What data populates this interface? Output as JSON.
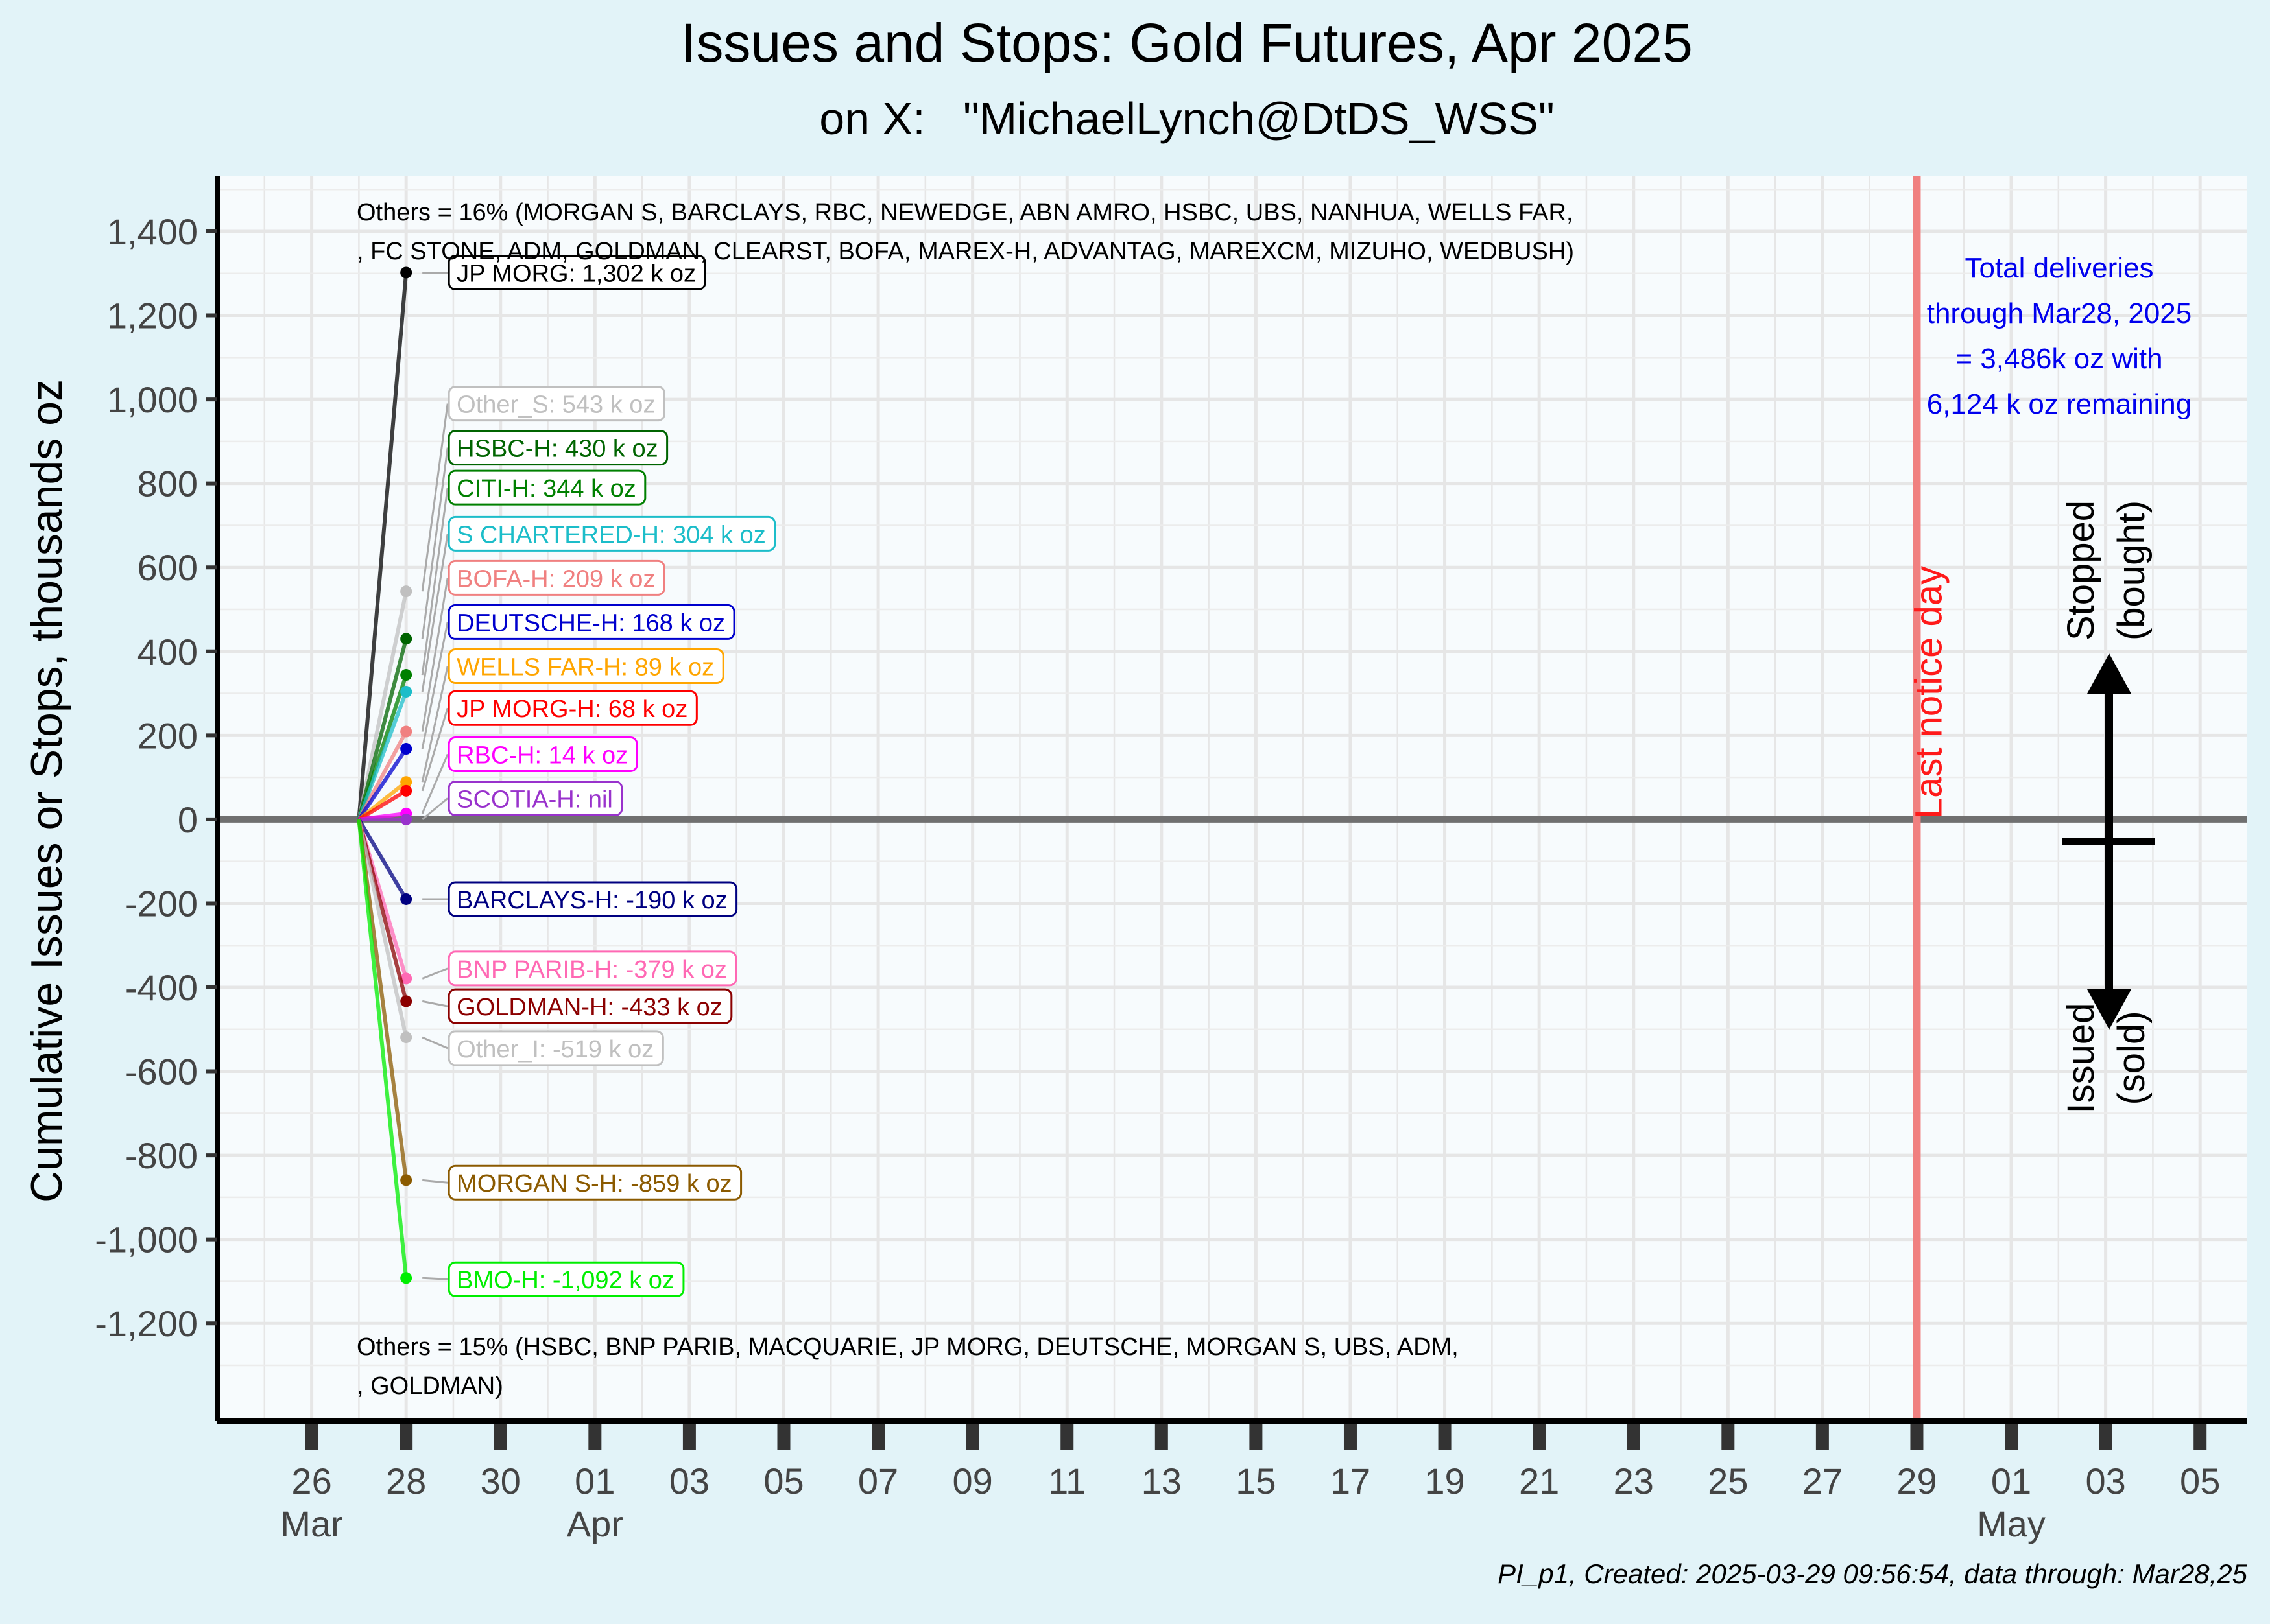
{
  "chart_data": {
    "type": "line",
    "title": "Issues and Stops: Gold Futures, Apr 2025",
    "subtitle": "on X:   \"MichaelLynch@DtDS_WSS\"",
    "ylabel": "Cumulative Issues or Stops, thousands oz",
    "xlabel": "",
    "ylim": [
      -1300,
      1400
    ],
    "xlim": [
      "2025-03-24",
      "2025-05-06"
    ],
    "y_ticks": [
      {
        "value": 1400,
        "label": "1,400"
      },
      {
        "value": 1200,
        "label": "1,200"
      },
      {
        "value": 1000,
        "label": "1,000"
      },
      {
        "value": 800,
        "label": "800"
      },
      {
        "value": 600,
        "label": "600"
      },
      {
        "value": 400,
        "label": "400"
      },
      {
        "value": 200,
        "label": "200"
      },
      {
        "value": 0,
        "label": "0"
      },
      {
        "value": -200,
        "label": "-200"
      },
      {
        "value": -400,
        "label": "-400"
      },
      {
        "value": -600,
        "label": "-600"
      },
      {
        "value": -800,
        "label": "-800"
      },
      {
        "value": -1000,
        "label": "-1,000"
      },
      {
        "value": -1200,
        "label": "-1,200"
      }
    ],
    "x_ticks": [
      {
        "date": "2025-03-26",
        "label": "26",
        "sub": "Mar"
      },
      {
        "date": "2025-03-28",
        "label": "28",
        "sub": ""
      },
      {
        "date": "2025-03-30",
        "label": "30",
        "sub": ""
      },
      {
        "date": "2025-04-01",
        "label": "01",
        "sub": "Apr"
      },
      {
        "date": "2025-04-03",
        "label": "03",
        "sub": ""
      },
      {
        "date": "2025-04-05",
        "label": "05",
        "sub": ""
      },
      {
        "date": "2025-04-07",
        "label": "07",
        "sub": ""
      },
      {
        "date": "2025-04-09",
        "label": "09",
        "sub": ""
      },
      {
        "date": "2025-04-11",
        "label": "11",
        "sub": ""
      },
      {
        "date": "2025-04-13",
        "label": "13",
        "sub": ""
      },
      {
        "date": "2025-04-15",
        "label": "15",
        "sub": ""
      },
      {
        "date": "2025-04-17",
        "label": "17",
        "sub": ""
      },
      {
        "date": "2025-04-19",
        "label": "19",
        "sub": ""
      },
      {
        "date": "2025-04-21",
        "label": "21",
        "sub": ""
      },
      {
        "date": "2025-04-23",
        "label": "23",
        "sub": ""
      },
      {
        "date": "2025-04-25",
        "label": "25",
        "sub": ""
      },
      {
        "date": "2025-04-27",
        "label": "27",
        "sub": ""
      },
      {
        "date": "2025-04-29",
        "label": "29",
        "sub": ""
      },
      {
        "date": "2025-05-01",
        "label": "01",
        "sub": "May"
      },
      {
        "date": "2025-05-03",
        "label": "03",
        "sub": ""
      },
      {
        "date": "2025-05-05",
        "label": "05",
        "sub": ""
      }
    ],
    "series": [
      {
        "label": "JP MORG: 1,302 k oz",
        "color": "#000000",
        "x": [
          "2025-03-27",
          "2025-03-28"
        ],
        "y": [
          0,
          1302
        ],
        "label_y": 1302
      },
      {
        "label": "Other_S: 543 k oz",
        "color": "#c0c0c0",
        "x": [
          "2025-03-27",
          "2025-03-28"
        ],
        "y": [
          0,
          543
        ],
        "label_y": 990
      },
      {
        "label": "HSBC-H: 430 k oz",
        "color": "#006400",
        "x": [
          "2025-03-27",
          "2025-03-28"
        ],
        "y": [
          0,
          430
        ],
        "label_y": 885
      },
      {
        "label": "CITI-H: 344 k oz",
        "color": "#008000",
        "x": [
          "2025-03-27",
          "2025-03-28"
        ],
        "y": [
          0,
          344
        ],
        "label_y": 790
      },
      {
        "label": "S CHARTERED-H: 304 k oz",
        "color": "#1cbdc9",
        "x": [
          "2025-03-27",
          "2025-03-28"
        ],
        "y": [
          0,
          304
        ],
        "label_y": 680
      },
      {
        "label": "BOFA-H: 209 k oz",
        "color": "#f08080",
        "x": [
          "2025-03-27",
          "2025-03-28"
        ],
        "y": [
          0,
          209
        ],
        "label_y": 575
      },
      {
        "label": "DEUTSCHE-H: 168 k oz",
        "color": "#0000cd",
        "x": [
          "2025-03-27",
          "2025-03-28"
        ],
        "y": [
          0,
          168
        ],
        "label_y": 470
      },
      {
        "label": "WELLS FAR-H: 89 k oz",
        "color": "#ffa500",
        "x": [
          "2025-03-27",
          "2025-03-28"
        ],
        "y": [
          0,
          89
        ],
        "label_y": 365
      },
      {
        "label": "JP MORG-H: 68 k oz",
        "color": "#ff0000",
        "x": [
          "2025-03-27",
          "2025-03-28"
        ],
        "y": [
          0,
          68
        ],
        "label_y": 265
      },
      {
        "label": "RBC-H: 14 k oz",
        "color": "#ff00ff",
        "x": [
          "2025-03-27",
          "2025-03-28"
        ],
        "y": [
          0,
          14
        ],
        "label_y": 155
      },
      {
        "label": "SCOTIA-H: nil",
        "color": "#9932cc",
        "x": [
          "2025-03-27",
          "2025-03-28"
        ],
        "y": [
          0,
          0
        ],
        "label_y": 50
      },
      {
        "label": "BARCLAYS-H: -190 k oz",
        "color": "#000080",
        "x": [
          "2025-03-27",
          "2025-03-28"
        ],
        "y": [
          0,
          -190
        ],
        "label_y": -190
      },
      {
        "label": "BNP PARIB-H: -379 k oz",
        "color": "#ff69b4",
        "x": [
          "2025-03-27",
          "2025-03-28"
        ],
        "y": [
          0,
          -379
        ],
        "label_y": -355
      },
      {
        "label": "GOLDMAN-H: -433 k oz",
        "color": "#8b0000",
        "x": [
          "2025-03-27",
          "2025-03-28"
        ],
        "y": [
          0,
          -433
        ],
        "label_y": -445
      },
      {
        "label": "Other_I: -519 k oz",
        "color": "#c0c0c0",
        "x": [
          "2025-03-27",
          "2025-03-28"
        ],
        "y": [
          0,
          -519
        ],
        "label_y": -545
      },
      {
        "label": "MORGAN S-H: -859 k oz",
        "color": "#8b5a00",
        "x": [
          "2025-03-27",
          "2025-03-28"
        ],
        "y": [
          0,
          -859
        ],
        "label_y": -865
      },
      {
        "label": "BMO-H: -1,092 k oz",
        "color": "#00ee00",
        "x": [
          "2025-03-27",
          "2025-03-28"
        ],
        "y": [
          0,
          -1092
        ],
        "label_y": -1095
      }
    ],
    "vline": {
      "date": "2025-04-29",
      "label": "Last notice day",
      "color": "#f08080"
    },
    "annotations": {
      "others_stops_line1": "Others = 16% (MORGAN S, BARCLAYS, RBC, NEWEDGE, ABN AMRO, HSBC, UBS, NANHUA, WELLS FAR,",
      "others_stops_line2": ", FC STONE, ADM, GOLDMAN, CLEARST, BOFA, MAREX-H, ADVANTAG, MAREXCM, MIZUHO, WEDBUSH)",
      "others_issues_line1": "Others = 15% (HSBC, BNP PARIB, MACQUARIE, JP MORG, DEUTSCHE, MORGAN S, UBS, ADM,",
      "others_issues_line2": ", GOLDMAN)",
      "total_line1": "Total deliveries",
      "total_line2": "through Mar28, 2025",
      "total_line3": "= 3,486k oz with",
      "total_line4": "6,124 k oz remaining",
      "stopped_line1": "Stopped",
      "stopped_line2": "(bought)",
      "issued_line1": "Issued",
      "issued_line2": "(sold)"
    },
    "grid": true,
    "legend": "none"
  },
  "footer": "PI_p1, Created: 2025-03-29 09:56:54, data through: Mar28,25",
  "colors": {
    "page_background": "#e2f3f8",
    "panel_background": "#f7fbfd",
    "grid": "#e6e6e6",
    "total_text": "#0000ee",
    "last_notice": "#f08080",
    "zero_line": "#707070"
  }
}
